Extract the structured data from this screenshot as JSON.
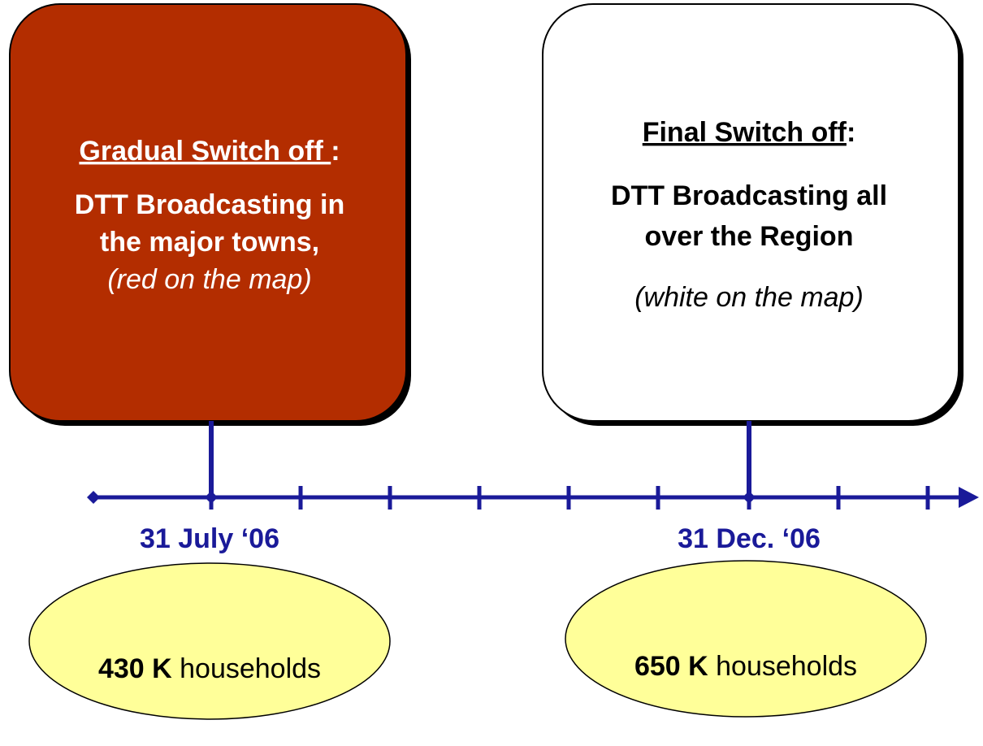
{
  "phases": [
    {
      "heading": "Gradual Switch off ",
      "colon": ":",
      "body": [
        "DTT Broadcasting in",
        "the major towns,"
      ],
      "note": "(red on the map)",
      "date": "31 July ‘06",
      "count": "430 K",
      "unit": "households"
    },
    {
      "heading": "Final Switch off",
      "colon": ":",
      "body": [
        "DTT Broadcasting all",
        "over the Region"
      ],
      "note": "(white on the map)",
      "date": "31 Dec. ‘06",
      "count": "650 K",
      "unit": "households"
    }
  ]
}
